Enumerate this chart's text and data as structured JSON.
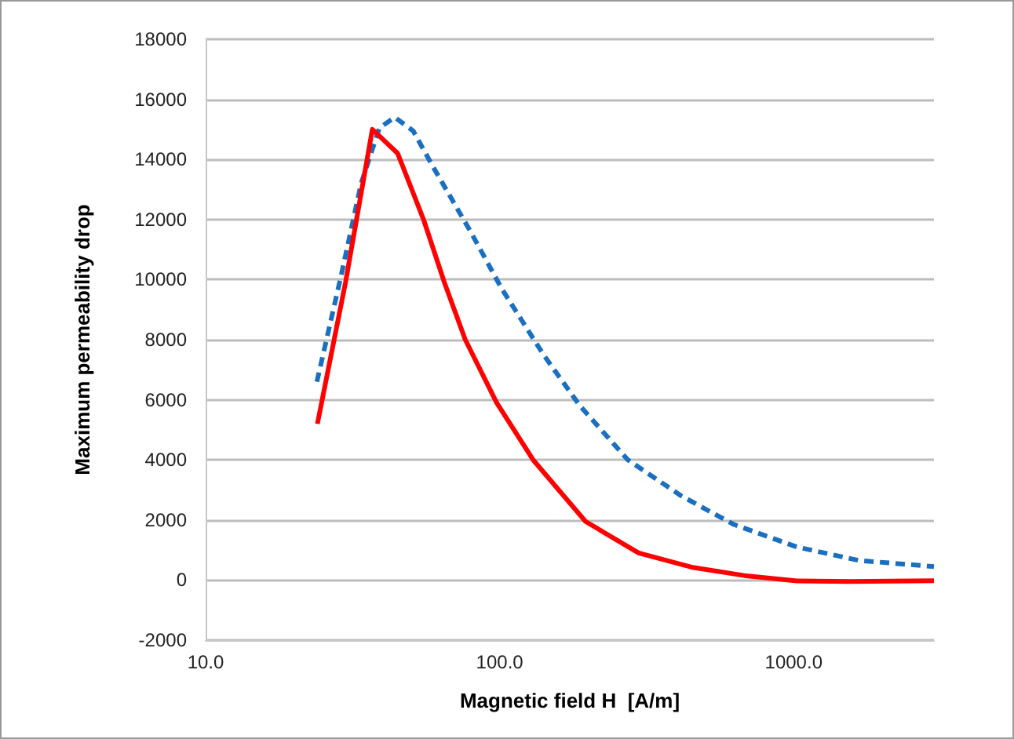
{
  "chart_data": {
    "type": "line",
    "xlabel": "Magnetic field H  [A/m]",
    "ylabel": "Maximum permeability drop",
    "log": "x",
    "xlim": [
      10,
      3000
    ],
    "xticks": [
      {
        "value": 10,
        "label": "10.0"
      },
      {
        "value": 100,
        "label": "100.0"
      },
      {
        "value": 1000,
        "label": "1000.0"
      }
    ],
    "ylim": [
      -2000,
      18000
    ],
    "yticks": [
      -2000,
      0,
      2000,
      4000,
      6000,
      8000,
      10000,
      12000,
      14000,
      16000,
      18000
    ],
    "grid": "y",
    "marker": "none",
    "series": [
      {
        "color": "#1a6fc0",
        "line_style": "dashed",
        "x": [
          23.9,
          29,
          33.8,
          39,
          44,
          50.8,
          59.8,
          79.6,
          101.6,
          141,
          187.5,
          273,
          415,
          626,
          1026,
          1670,
          3000
        ],
        "values": [
          6600,
          10200,
          13200,
          15050,
          15400,
          14950,
          13700,
          11600,
          9700,
          7500,
          5800,
          4000,
          2800,
          1850,
          1100,
          650,
          450
        ]
      },
      {
        "color": "#ff0000",
        "line_style": "solid",
        "x": [
          24,
          29.9,
          36.9,
          45,
          55.1,
          64.9,
          76.4,
          97.7,
          130,
          196,
          297,
          449,
          679,
          1026,
          1552,
          3000
        ],
        "values": [
          5200,
          9900,
          15000,
          14200,
          12000,
          9900,
          8000,
          5900,
          4000,
          1950,
          900,
          430,
          150,
          -30,
          -50,
          -20
        ]
      }
    ]
  }
}
